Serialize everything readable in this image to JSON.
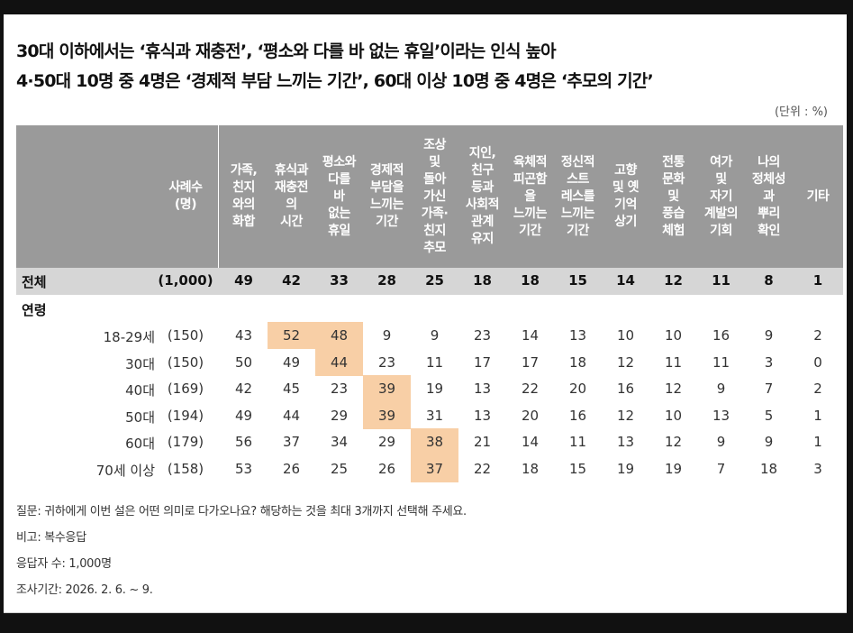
{
  "title_line1": "30대 이하에서는 ‘휴식과 재충전’, ‘평소와 다를 바 없는 휴일’이라는 인식 높아",
  "title_line2": "4·50대 10명 중 4명은 ‘경제적 부담 느끼는 기간’, 60대 이상 10명 중 4명은 ‘추모의 기간’",
  "unit": "(단위 : %)",
  "columns": {
    "n": "사례수\n(명)",
    "c1": "가족,\n친지\n와의\n화합",
    "c2": "휴식과\n재충전\n의\n시간",
    "c3": "평소와\n다를\n바\n없는\n휴일",
    "c4": "경제적\n부담을\n느끼는\n기간",
    "c5": "조상\n및\n돌아\n가신\n가족·\n친지\n추모",
    "c6": "지인,\n친구\n등과\n사회적\n관계\n유지",
    "c7": "육체적\n피곤함\n을\n느끼는\n기간",
    "c8": "정신적\n스트\n레스를\n느끼는\n기간",
    "c9": "고향\n및 옛\n기억\n상기",
    "c10": "전통\n문화\n및\n풍습\n체험",
    "c11": "여가\n및\n자기\n계발의\n기회",
    "c12": "나의\n정체성\n과\n뿌리\n확인",
    "c13": "기타"
  },
  "total": {
    "label": "전체",
    "n": "(1,000)",
    "values": [
      "49",
      "42",
      "33",
      "28",
      "25",
      "18",
      "18",
      "15",
      "14",
      "12",
      "11",
      "8",
      "1"
    ]
  },
  "section_label": "연령",
  "rows": [
    {
      "label": "18-29세",
      "n": "(150)",
      "values": [
        "43",
        "52",
        "48",
        "9",
        "9",
        "23",
        "14",
        "13",
        "10",
        "10",
        "16",
        "9",
        "2"
      ]
    },
    {
      "label": "30대",
      "n": "(150)",
      "values": [
        "50",
        "49",
        "44",
        "23",
        "11",
        "17",
        "17",
        "18",
        "12",
        "11",
        "11",
        "3",
        "0"
      ]
    },
    {
      "label": "40대",
      "n": "(169)",
      "values": [
        "42",
        "45",
        "23",
        "39",
        "19",
        "13",
        "22",
        "20",
        "16",
        "12",
        "9",
        "7",
        "2"
      ]
    },
    {
      "label": "50대",
      "n": "(194)",
      "values": [
        "49",
        "44",
        "29",
        "39",
        "31",
        "13",
        "20",
        "16",
        "12",
        "10",
        "13",
        "5",
        "1"
      ]
    },
    {
      "label": "60대",
      "n": "(179)",
      "values": [
        "56",
        "37",
        "34",
        "29",
        "38",
        "21",
        "14",
        "11",
        "13",
        "12",
        "9",
        "9",
        "1"
      ]
    },
    {
      "label": "70세 이상",
      "n": "(158)",
      "values": [
        "53",
        "26",
        "25",
        "26",
        "37",
        "22",
        "18",
        "15",
        "19",
        "19",
        "7",
        "18",
        "3"
      ]
    }
  ],
  "highlight_color": "#f8cfa6",
  "footer": {
    "question": "질문: 귀하에게 이번 설은 어떤 의미로 다가오나요? 해당하는 것을 최대 3개까지 선택해 주세요.",
    "note": "비고: 복수응답",
    "respondents": "응답자 수: 1,000명",
    "period": "조사기간: 2026. 2. 6. ~ 9."
  }
}
